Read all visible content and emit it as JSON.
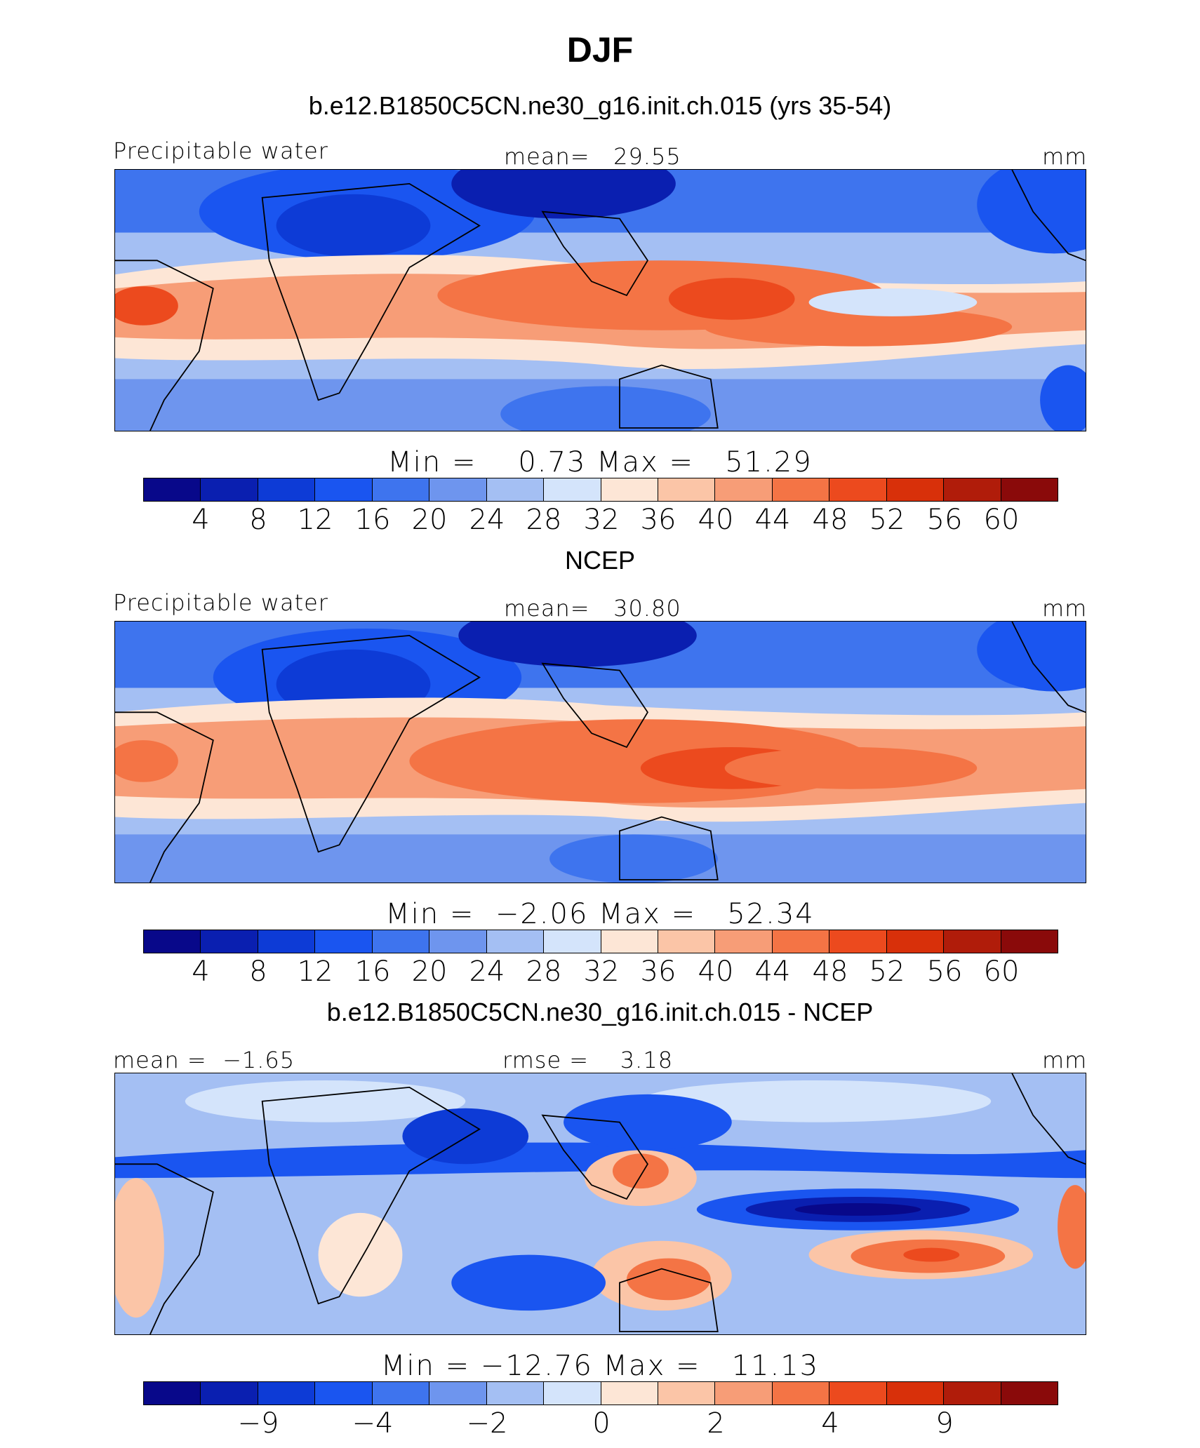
{
  "figure": {
    "title": "DJF",
    "colors": [
      "#08088a",
      "#0a1fb0",
      "#0d3bd6",
      "#1a55f0",
      "#3e74ee",
      "#6e95ee",
      "#a4bff3",
      "#d4e4fb",
      "#fde6d6",
      "#fbc5a7",
      "#f79d77",
      "#f47445",
      "#ec4a1e",
      "#d8300a",
      "#b01c0a",
      "#8a0a0a"
    ]
  },
  "panels": [
    {
      "title": "b.e12.B1850C5CN.ne30_g16.init.ch.015 (yrs 35-54)",
      "left_label": "Precipitable water",
      "center_label": "mean=   29.55",
      "right_label": "mm",
      "minmax": "Min =    0.73 Max =   51.29"
    },
    {
      "title": "NCEP",
      "left_label": "Precipitable water",
      "center_label": "mean=   30.80",
      "right_label": "mm",
      "minmax": "Min =  −2.06 Max =   52.34"
    },
    {
      "title": "b.e12.B1850C5CN.ne30_g16.init.ch.015 - NCEP",
      "left_label": "mean =  −1.65",
      "center_label": "rmse =    3.18",
      "right_label": "mm",
      "minmax": "Min = −12.76 Max =   11.13"
    }
  ],
  "chart_data": [
    {
      "type": "heatmap",
      "title": "b.e12.B1850C5CN.ne30_g16.init.ch.015 (yrs 35-54)",
      "variable": "Precipitable water",
      "units": "mm",
      "mean": 29.55,
      "min": 0.73,
      "max": 51.29,
      "colorbar_levels": [
        4,
        8,
        12,
        16,
        20,
        24,
        28,
        32,
        36,
        40,
        44,
        48,
        52,
        56,
        60
      ],
      "colorbar_labels": [
        "4",
        "8",
        "12",
        "16",
        "20",
        "24",
        "28",
        "32",
        "36",
        "40",
        "44",
        "48",
        "52",
        "56",
        "60"
      ]
    },
    {
      "type": "heatmap",
      "title": "NCEP",
      "variable": "Precipitable water",
      "units": "mm",
      "mean": 30.8,
      "min": -2.06,
      "max": 52.34,
      "colorbar_levels": [
        4,
        8,
        12,
        16,
        20,
        24,
        28,
        32,
        36,
        40,
        44,
        48,
        52,
        56,
        60
      ],
      "colorbar_labels": [
        "4",
        "8",
        "12",
        "16",
        "20",
        "24",
        "28",
        "32",
        "36",
        "40",
        "44",
        "48",
        "52",
        "56",
        "60"
      ]
    },
    {
      "type": "heatmap",
      "title": "b.e12.B1850C5CN.ne30_g16.init.ch.015 - NCEP",
      "units": "mm",
      "mean": -1.65,
      "rmse": 3.18,
      "min": -12.76,
      "max": 11.13,
      "colorbar_levels": [
        -9,
        -4,
        -2,
        0,
        2,
        4,
        9
      ],
      "colorbar_labels": [
        "−9",
        "−4",
        "−2",
        "0",
        "2",
        "4",
        "9"
      ]
    }
  ]
}
